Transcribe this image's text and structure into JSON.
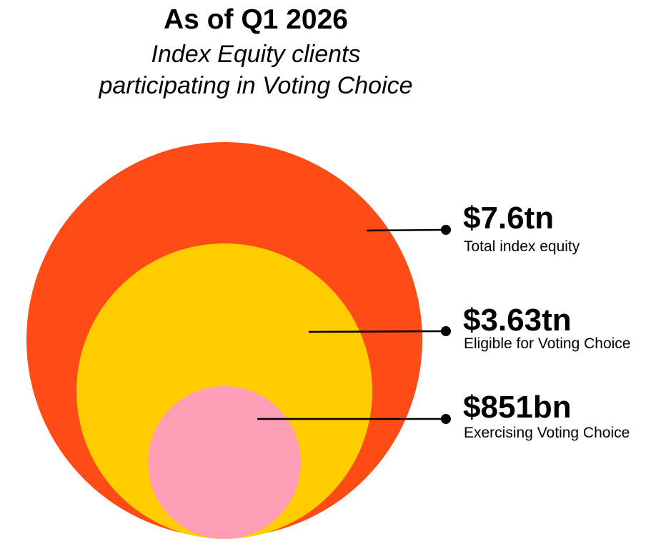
{
  "header": {
    "title": "As of Q1 2026",
    "subtitle_line1": "Index Equity clients",
    "subtitle_line2": "participating in Voting Choice"
  },
  "chart_data": {
    "type": "nested-circles",
    "title": "As of Q1 2026",
    "subtitle": "Index Equity clients participating in Voting Choice",
    "units": "USD",
    "series": [
      {
        "value_label": "$7.6tn",
        "value": 7.6,
        "unit": "tn",
        "name": "Total index equity",
        "color": "#FF4B16"
      },
      {
        "value_label": "$3.63tn",
        "value": 3.63,
        "unit": "tn",
        "name": "Eligible for Voting Choice",
        "color": "#FFCC00"
      },
      {
        "value_label": "$851bn",
        "value": 0.851,
        "unit": "tn",
        "name": "Exercising Voting Choice",
        "color": "#FF9EB5"
      }
    ]
  }
}
